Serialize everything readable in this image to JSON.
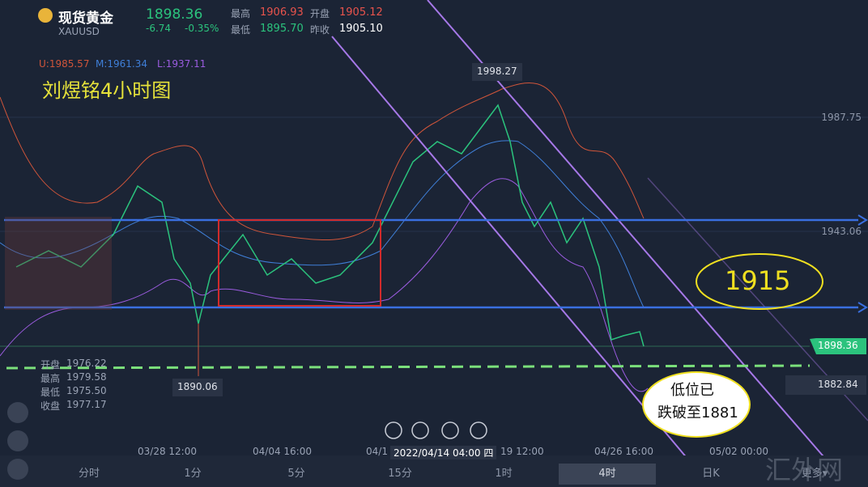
{
  "header": {
    "title": "现货黄金",
    "symbol": "XAUUSD",
    "price": "1898.36",
    "change": "-6.74",
    "change_pct": "-0.35%",
    "stats": [
      {
        "label": "最高",
        "value": "1906.93"
      },
      {
        "label": "开盘",
        "value": "1905.12"
      },
      {
        "label": "最低",
        "value": "1895.70"
      },
      {
        "label": "昨收",
        "value": "1905.10"
      }
    ]
  },
  "indicators": [
    "U:1985.57",
    "M:1961.34",
    "L:1937.11"
  ],
  "chart_title": "刘煜铭4小时图",
  "price_axis": [
    "1987.75",
    "1943.06",
    "1898.36",
    "1882.84"
  ],
  "markers": {
    "high": "1998.27",
    "low": "1890.06"
  },
  "ohlc": [
    {
      "label": "开盘",
      "value": "1976.22"
    },
    {
      "label": "最高",
      "value": "1979.58"
    },
    {
      "label": "最低",
      "value": "1975.50"
    },
    {
      "label": "收盘",
      "value": "1977.17"
    }
  ],
  "annotations": {
    "level": "1915",
    "note_line1": "低位已",
    "note_line2": "跌破至1881"
  },
  "time_axis": [
    "03/28 12:00",
    "04/04 16:00",
    "04/1",
    "2022/04/14 04:00 四",
    "19 12:00",
    "04/26 16:00",
    "05/02 00:00"
  ],
  "tabs": [
    "分时",
    "1分",
    "5分",
    "15分",
    "1时",
    "4时",
    "日K",
    "更多▾"
  ],
  "watermark": "汇外网"
}
